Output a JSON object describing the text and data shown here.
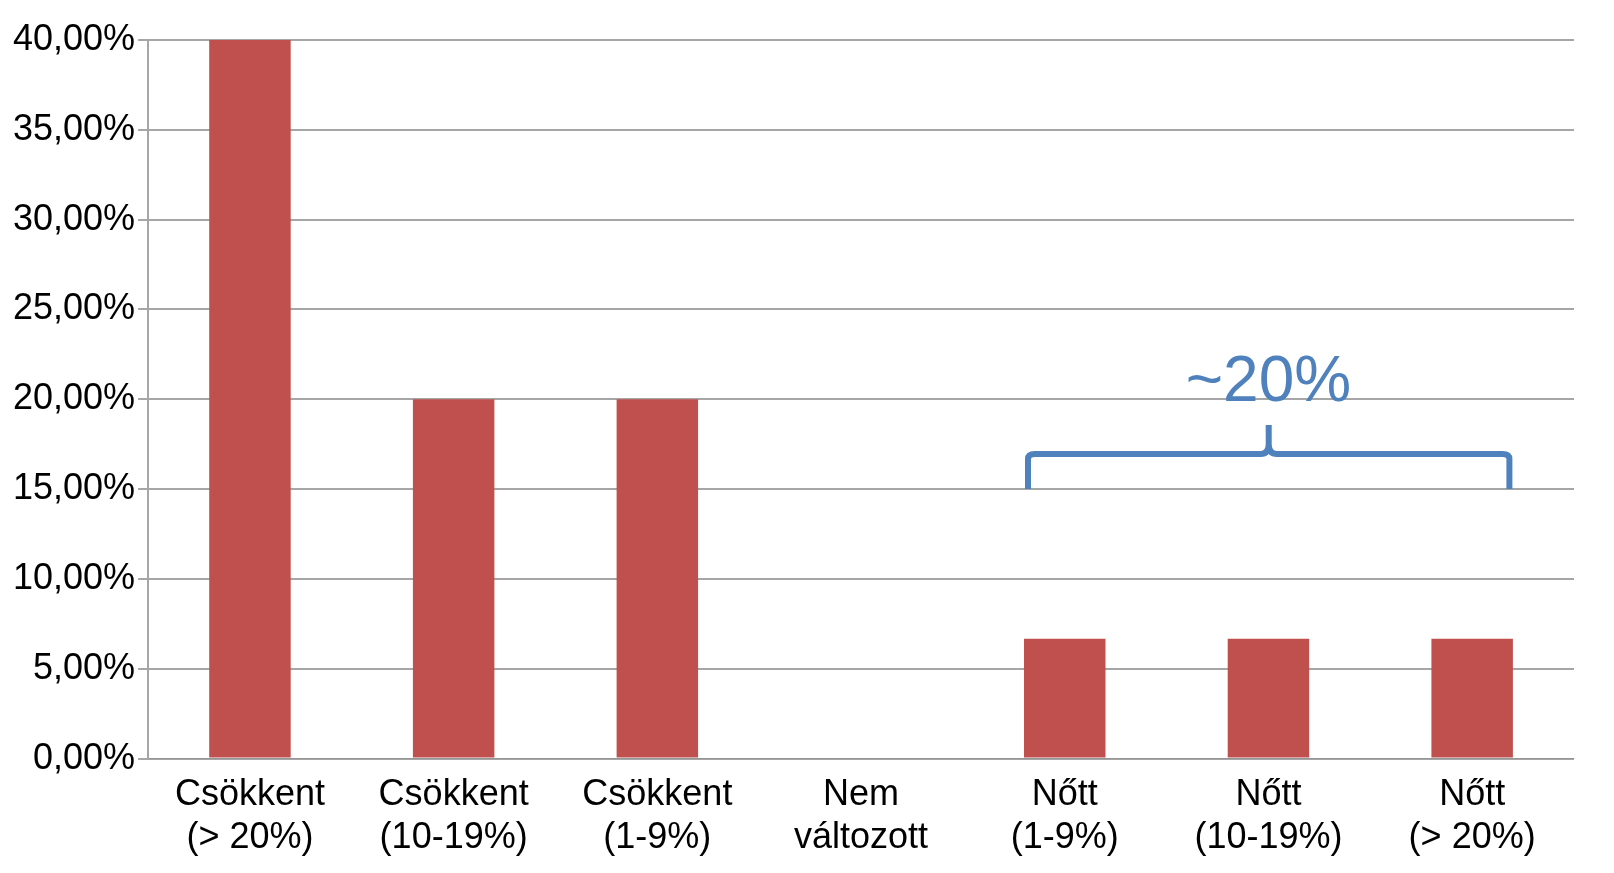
{
  "chart_data": {
    "type": "bar",
    "categories": [
      "Csökkent (> 20%)",
      "Csökkent (10-19%)",
      "Csökkent (1-9%)",
      "Nem változott",
      "Nőtt (1-9%)",
      "Nőtt (10-19%)",
      "Nőtt (> 20%)"
    ],
    "values": [
      40,
      20,
      20,
      0,
      6.67,
      6.67,
      6.67
    ],
    "color": "#c0504d",
    "ylim": [
      0,
      40
    ],
    "yticks": [
      {
        "value": 0,
        "label": "0,00%"
      },
      {
        "value": 5,
        "label": "5,00%"
      },
      {
        "value": 10,
        "label": "10,00%"
      },
      {
        "value": 15,
        "label": "15,00%"
      },
      {
        "value": 20,
        "label": "20,00%"
      },
      {
        "value": 25,
        "label": "25,00%"
      },
      {
        "value": 30,
        "label": "30,00%"
      },
      {
        "value": 35,
        "label": "35,00%"
      },
      {
        "value": 40,
        "label": "40,00%"
      }
    ],
    "grid": "y",
    "annotations": [
      "~20%"
    ]
  }
}
